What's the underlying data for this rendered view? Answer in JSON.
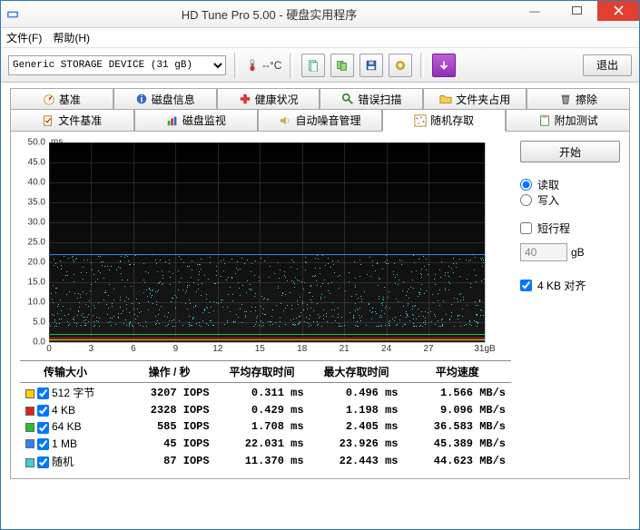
{
  "window": {
    "title": "HD Tune Pro 5.00 - 硬盘实用程序"
  },
  "menu": {
    "file": "文件(F)",
    "help": "帮助(H)"
  },
  "toolbar": {
    "device": "Generic STORAGE DEVICE   (31 gB)",
    "temp": "--°C",
    "exit": "退出"
  },
  "tabs_row1": {
    "benchmark": "基准",
    "info": "磁盘信息",
    "health": "健康状况",
    "errorscan": "错误扫描",
    "folder": "文件夹占用",
    "erase": "擦除"
  },
  "tabs_row2": {
    "filebench": "文件基准",
    "monitor": "磁盘监视",
    "aam": "自动噪音管理",
    "random": "随机存取",
    "extra": "附加测试"
  },
  "side": {
    "start": "开始",
    "read": "读取",
    "write": "写入",
    "shortstroke": "短行程",
    "shortstroke_val": "40",
    "shortstroke_unit": "gB",
    "align": "4 KB 对齐"
  },
  "chart": {
    "type": "scatter+lines",
    "y_label": "ms",
    "ylim": [
      0,
      50
    ],
    "y_ticks": [
      50,
      45,
      40,
      35,
      30,
      25,
      20,
      15,
      10,
      5,
      0
    ],
    "xlim": [
      0,
      31
    ],
    "x_ticks": [
      0,
      3,
      6,
      9,
      12,
      15,
      18,
      21,
      24,
      27
    ],
    "x_last": "31gB",
    "grid_color": "#565656",
    "colors": {
      "bytes512": "#ffd000",
      "kb4": "#e02020",
      "kb64": "#20c030",
      "mb1": "#3080ff",
      "random": "#40cfcf"
    },
    "blue_band_y_ms": 22,
    "scatter_band": {
      "min": 4,
      "max": 22
    }
  },
  "results": {
    "headers": {
      "size": "传输大小",
      "ops": "操作 / 秒",
      "avg": "平均存取时间",
      "max": "最大存取时间",
      "speed": "平均速度"
    },
    "rows": [
      {
        "color": "#ffd000",
        "checked": true,
        "name": "512 字节",
        "iops": "3207 IOPS",
        "avg": "0.311 ms",
        "max": "0.496 ms",
        "speed": "1.566 MB/s"
      },
      {
        "color": "#e02020",
        "checked": true,
        "name": "4 KB",
        "iops": "2328 IOPS",
        "avg": "0.429 ms",
        "max": "1.198 ms",
        "speed": "9.096 MB/s"
      },
      {
        "color": "#20c030",
        "checked": true,
        "name": "64 KB",
        "iops": "585 IOPS",
        "avg": "1.708 ms",
        "max": "2.405 ms",
        "speed": "36.583 MB/s"
      },
      {
        "color": "#3080ff",
        "checked": true,
        "name": "1 MB",
        "iops": "45 IOPS",
        "avg": "22.031 ms",
        "max": "23.926 ms",
        "speed": "45.389 MB/s"
      },
      {
        "color": "#40cfcf",
        "checked": true,
        "name": "随机",
        "iops": "87 IOPS",
        "avg": "11.370 ms",
        "max": "22.443 ms",
        "speed": "44.623 MB/s"
      }
    ]
  }
}
